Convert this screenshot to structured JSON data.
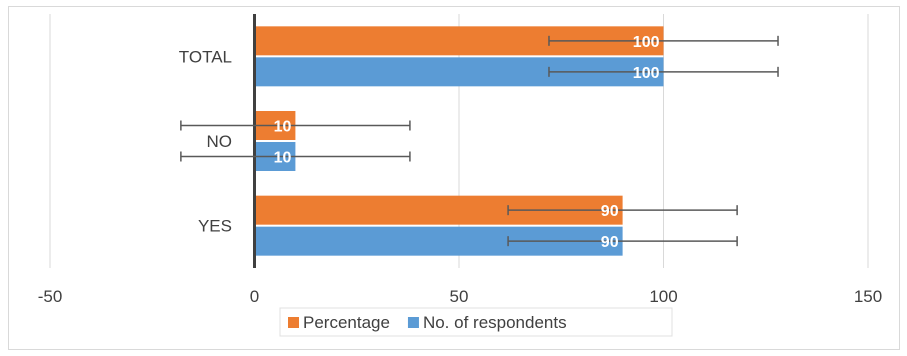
{
  "chart_data": {
    "type": "bar",
    "orientation": "horizontal",
    "categories": [
      "YES",
      "NO",
      "TOTAL"
    ],
    "series": [
      {
        "name": "Percentage",
        "values": [
          90,
          10,
          100
        ],
        "color": "#ED7D31"
      },
      {
        "name": "No. of respondents",
        "values": [
          90,
          10,
          100
        ],
        "color": "#5B9BD5"
      }
    ],
    "error_bars": {
      "plus_minus": 28
    },
    "xlim": [
      -50,
      150
    ],
    "xticks": [
      -50,
      0,
      50,
      100,
      150
    ],
    "grid": true,
    "legend_position": "bottom",
    "data_labels": true
  }
}
